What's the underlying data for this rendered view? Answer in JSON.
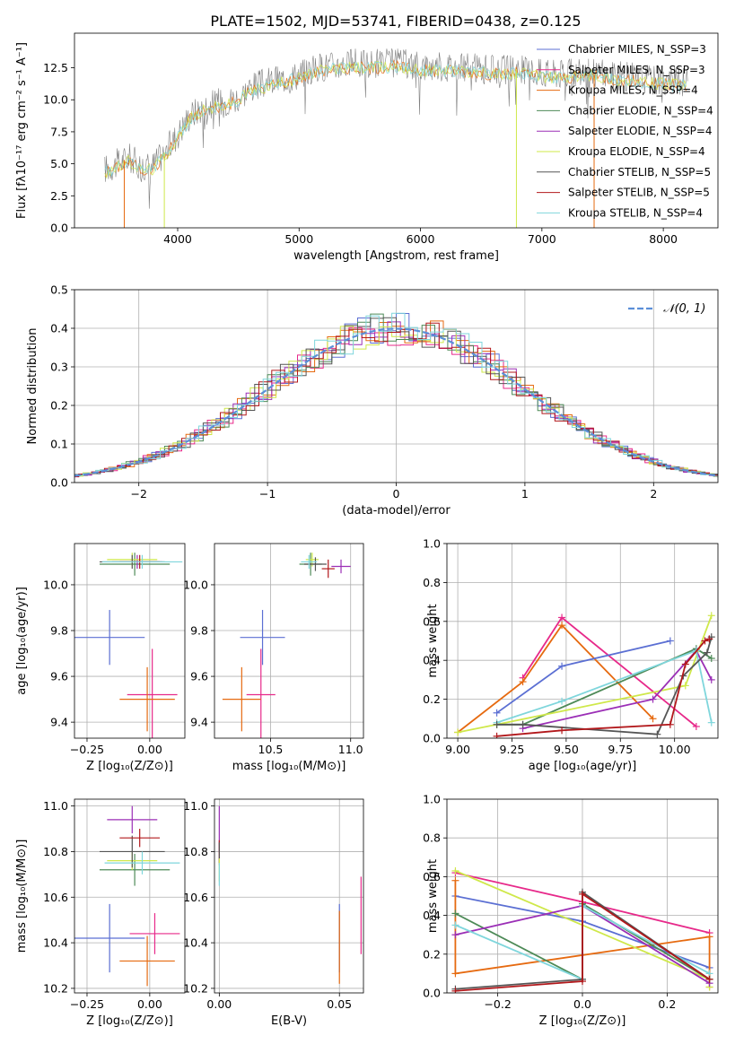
{
  "figure": {
    "title": "PLATE=1502, MJD=53741, FIBERID=0438, z=0.125"
  },
  "colors": {
    "Chabrier MILES": "#5b6fd3",
    "Salpeter MILES": "#e7298a",
    "Kroupa MILES": "#e66a10",
    "Chabrier ELODIE": "#4d8a57",
    "Salpeter ELODIE": "#9b2fb6",
    "Kroupa ELODIE": "#cfe84a",
    "Chabrier STELIB": "#555555",
    "Salpeter STELIB": "#b2181b",
    "Kroupa STELIB": "#7fd6dc",
    "gaussian": "#5b8fd8",
    "data": "#808080"
  },
  "chart_data": [
    {
      "id": "spectrum",
      "type": "line",
      "xlabel": "wavelength [Angstrom, rest frame]",
      "ylabel": "Flux [fλ10⁻¹⁷ erg cm⁻² s⁻¹ A⁻¹]",
      "xlim": [
        3150,
        8450
      ],
      "ylim": [
        0,
        15.2
      ],
      "xticks": [
        4000,
        5000,
        6000,
        7000,
        8000
      ],
      "yticks": [
        0.0,
        2.5,
        5.0,
        7.5,
        10.0,
        12.5
      ],
      "legend_position": "upper right",
      "legend": [
        {
          "label": "Chabrier MILES, N_SSP=3",
          "color_key": "Chabrier MILES"
        },
        {
          "label": "Salpeter MILES, N_SSP=3",
          "color_key": "Salpeter MILES"
        },
        {
          "label": "Kroupa MILES, N_SSP=4",
          "color_key": "Kroupa MILES"
        },
        {
          "label": "Chabrier ELODIE, N_SSP=4",
          "color_key": "Chabrier ELODIE"
        },
        {
          "label": "Salpeter ELODIE, N_SSP=4",
          "color_key": "Salpeter ELODIE"
        },
        {
          "label": "Kroupa ELODIE, N_SSP=4",
          "color_key": "Kroupa ELODIE"
        },
        {
          "label": "Chabrier STELIB, N_SSP=5",
          "color_key": "Chabrier STELIB"
        },
        {
          "label": "Salpeter STELIB, N_SSP=5",
          "color_key": "Salpeter STELIB"
        },
        {
          "label": "Kroupa STELIB, N_SSP=4",
          "color_key": "Kroupa STELIB"
        }
      ],
      "envelope": {
        "x": [
          3400,
          3500,
          3600,
          3700,
          3800,
          3900,
          4000,
          4100,
          4200,
          4300,
          4400,
          4500,
          4600,
          4800,
          5000,
          5200,
          5400,
          5600,
          5800,
          6000,
          6200,
          6400,
          6600,
          6800,
          7000,
          7200,
          7400,
          7600,
          7800,
          8000,
          8200
        ],
        "y": [
          4.6,
          5.0,
          5.5,
          4.8,
          4.9,
          6.0,
          7.3,
          8.8,
          9.4,
          9.7,
          9.9,
          10.2,
          11.0,
          11.5,
          12.0,
          12.6,
          12.8,
          12.8,
          12.9,
          12.6,
          12.6,
          12.5,
          12.3,
          12.4,
          12.1,
          12.0,
          12.2,
          11.9,
          11.7,
          11.5,
          11.4
        ]
      }
    },
    {
      "id": "residuals",
      "type": "line",
      "xlabel": "(data-model)/error",
      "ylabel": "Normed distribution",
      "xlim": [
        -2.5,
        2.5
      ],
      "ylim": [
        0.0,
        0.5
      ],
      "xticks": [
        -2,
        -1,
        0,
        1,
        2
      ],
      "yticks": [
        0.0,
        0.1,
        0.2,
        0.3,
        0.4,
        0.5
      ],
      "grid": true,
      "legend_position": "upper right",
      "legend": [
        {
          "label": "𝒩(0, 1)",
          "color_key": "gaussian"
        }
      ]
    },
    {
      "id": "age-vs-Z",
      "type": "scatter",
      "xlabel": "Z [log₁₀(Z/Z⊙)]",
      "ylabel": "age  [log₁₀(age/yr)]",
      "xlim": [
        -0.3,
        0.14
      ],
      "ylim": [
        9.33,
        10.18
      ],
      "xticks": [
        -0.25,
        0.0
      ],
      "yticks": [
        9.4,
        9.6,
        9.8,
        10.0
      ],
      "grid": true,
      "points": [
        {
          "color_key": "Chabrier MILES",
          "x": -0.16,
          "y": 9.77,
          "ex": 0.14,
          "ey": 0.12
        },
        {
          "color_key": "Salpeter MILES",
          "x": 0.01,
          "y": 9.52,
          "ex": 0.1,
          "ey": 0.2
        },
        {
          "color_key": "Kroupa MILES",
          "x": -0.01,
          "y": 9.5,
          "ex": 0.11,
          "ey": 0.14
        },
        {
          "color_key": "Chabrier ELODIE",
          "x": -0.06,
          "y": 10.09,
          "ex": 0.14,
          "ey": 0.05
        },
        {
          "color_key": "Salpeter ELODIE",
          "x": -0.05,
          "y": 10.1,
          "ex": 0.1,
          "ey": 0.03
        },
        {
          "color_key": "Kroupa ELODIE",
          "x": -0.07,
          "y": 10.11,
          "ex": 0.1,
          "ey": 0.03
        },
        {
          "color_key": "Chabrier STELIB",
          "x": -0.07,
          "y": 10.1,
          "ex": 0.13,
          "ey": 0.03
        },
        {
          "color_key": "Salpeter STELIB",
          "x": -0.04,
          "y": 10.1,
          "ex": 0.08,
          "ey": 0.03
        },
        {
          "color_key": "Kroupa STELIB",
          "x": -0.03,
          "y": 10.1,
          "ex": 0.16,
          "ey": 0.03
        }
      ]
    },
    {
      "id": "age-vs-mass",
      "type": "scatter",
      "xlabel": "mass [log₁₀(M/M⊙)]",
      "ylabel": "",
      "xlim": [
        10.15,
        11.08
      ],
      "ylim": [
        9.33,
        10.18
      ],
      "xticks": [
        10.5,
        11.0
      ],
      "yticks": [
        9.4,
        9.6,
        9.8,
        10.0
      ],
      "grid": true,
      "points": [
        {
          "color_key": "Chabrier MILES",
          "x": 10.45,
          "y": 9.77,
          "ex": 0.14,
          "ey": 0.12
        },
        {
          "color_key": "Salpeter MILES",
          "x": 10.44,
          "y": 9.52,
          "ex": 0.09,
          "ey": 0.2
        },
        {
          "color_key": "Kroupa MILES",
          "x": 10.32,
          "y": 9.5,
          "ex": 0.12,
          "ey": 0.14
        },
        {
          "color_key": "Chabrier ELODIE",
          "x": 10.75,
          "y": 10.09,
          "ex": 0.07,
          "ey": 0.05
        },
        {
          "color_key": "Salpeter ELODIE",
          "x": 10.94,
          "y": 10.08,
          "ex": 0.06,
          "ey": 0.03
        },
        {
          "color_key": "Kroupa ELODIE",
          "x": 10.76,
          "y": 10.11,
          "ex": 0.04,
          "ey": 0.03
        },
        {
          "color_key": "Chabrier STELIB",
          "x": 10.78,
          "y": 10.09,
          "ex": 0.07,
          "ey": 0.03
        },
        {
          "color_key": "Salpeter STELIB",
          "x": 10.86,
          "y": 10.07,
          "ex": 0.04,
          "ey": 0.04
        },
        {
          "color_key": "Kroupa STELIB",
          "x": 10.74,
          "y": 10.1,
          "ex": 0.05,
          "ey": 0.03
        }
      ]
    },
    {
      "id": "mass-weight-vs-age",
      "type": "line",
      "xlabel": "age  [log₁₀(age/yr)]",
      "ylabel": "mass weight",
      "xlim": [
        8.95,
        10.2
      ],
      "ylim": [
        0.0,
        1.0
      ],
      "xticks": [
        9.0,
        9.25,
        9.5,
        9.75,
        10.0
      ],
      "yticks": [
        0.0,
        0.2,
        0.4,
        0.6,
        0.8,
        1.0
      ],
      "grid": true,
      "series": [
        {
          "color_key": "Salpeter MILES",
          "x": [
            9.3,
            9.48,
            10.1
          ],
          "y": [
            0.31,
            0.62,
            0.06
          ]
        },
        {
          "color_key": "Kroupa MILES",
          "x": [
            9.0,
            9.3,
            9.48,
            9.9
          ],
          "y": [
            0.03,
            0.29,
            0.58,
            0.1
          ]
        },
        {
          "color_key": "Chabrier MILES",
          "x": [
            9.18,
            9.48,
            9.98
          ],
          "y": [
            0.13,
            0.37,
            0.5
          ]
        },
        {
          "color_key": "Chabrier ELODIE",
          "x": [
            9.18,
            9.3,
            10.1,
            10.17
          ],
          "y": [
            0.07,
            0.07,
            0.46,
            0.41
          ]
        },
        {
          "color_key": "Kroupa ELODIE",
          "x": [
            9.0,
            9.18,
            10.05,
            10.17
          ],
          "y": [
            0.03,
            0.07,
            0.27,
            0.63
          ]
        },
        {
          "color_key": "Salpeter ELODIE",
          "x": [
            9.3,
            9.9,
            10.1,
            10.17
          ],
          "y": [
            0.05,
            0.2,
            0.45,
            0.3
          ]
        },
        {
          "color_key": "Kroupa STELIB",
          "x": [
            9.18,
            9.48,
            10.1,
            10.17
          ],
          "y": [
            0.08,
            0.19,
            0.45,
            0.08
          ]
        },
        {
          "color_key": "Chabrier STELIB",
          "x": [
            9.18,
            9.3,
            9.92,
            10.04,
            10.15,
            10.17
          ],
          "y": [
            0.07,
            0.07,
            0.02,
            0.32,
            0.44,
            0.52
          ]
        },
        {
          "color_key": "Salpeter STELIB",
          "x": [
            9.18,
            9.48,
            9.98,
            10.05,
            10.14,
            10.16
          ],
          "y": [
            0.01,
            0.04,
            0.07,
            0.38,
            0.5,
            0.51
          ]
        }
      ]
    },
    {
      "id": "mass-vs-Z",
      "type": "scatter",
      "xlabel": "Z [log₁₀(Z/Z⊙)]",
      "ylabel": "mass [log₁₀(M/M⊙)]",
      "xlim": [
        -0.3,
        0.14
      ],
      "ylim": [
        10.18,
        11.03
      ],
      "xticks": [
        -0.25,
        0.0
      ],
      "yticks": [
        10.2,
        10.4,
        10.6,
        10.8,
        11.0
      ],
      "grid": true,
      "points": [
        {
          "color_key": "Chabrier MILES",
          "x": -0.16,
          "y": 10.42,
          "ex": 0.14,
          "ey": 0.15
        },
        {
          "color_key": "Salpeter MILES",
          "x": 0.02,
          "y": 10.44,
          "ex": 0.1,
          "ey": 0.09
        },
        {
          "color_key": "Kroupa MILES",
          "x": -0.01,
          "y": 10.32,
          "ex": 0.11,
          "ey": 0.11
        },
        {
          "color_key": "Chabrier ELODIE",
          "x": -0.06,
          "y": 10.72,
          "ex": 0.14,
          "ey": 0.07
        },
        {
          "color_key": "Salpeter ELODIE",
          "x": -0.07,
          "y": 10.94,
          "ex": 0.1,
          "ey": 0.06
        },
        {
          "color_key": "Kroupa ELODIE",
          "x": -0.07,
          "y": 10.76,
          "ex": 0.1,
          "ey": 0.04
        },
        {
          "color_key": "Chabrier STELIB",
          "x": -0.07,
          "y": 10.8,
          "ex": 0.13,
          "ey": 0.07
        },
        {
          "color_key": "Salpeter STELIB",
          "x": -0.04,
          "y": 10.86,
          "ex": 0.08,
          "ey": 0.04
        },
        {
          "color_key": "Kroupa STELIB",
          "x": -0.03,
          "y": 10.75,
          "ex": 0.15,
          "ey": 0.05
        }
      ]
    },
    {
      "id": "mass-vs-ebv",
      "type": "scatter",
      "xlabel": "E(B-V)",
      "ylabel": "",
      "xlim": [
        -0.002,
        0.06
      ],
      "ylim": [
        10.18,
        11.03
      ],
      "xticks": [
        0.0,
        0.05
      ],
      "yticks": [
        10.2,
        10.4,
        10.6,
        10.8,
        11.0
      ],
      "grid": true,
      "points": [
        {
          "color_key": "Chabrier MILES",
          "x": 0.05,
          "y": 10.42,
          "ex": 0.0,
          "ey": 0.15
        },
        {
          "color_key": "Salpeter MILES",
          "x": 0.059,
          "y": 10.52,
          "ex": 0.0,
          "ey": 0.17
        },
        {
          "color_key": "Kroupa MILES",
          "x": 0.05,
          "y": 10.38,
          "ex": 0.0,
          "ey": 0.16
        },
        {
          "color_key": "Salpeter ELODIE",
          "x": 0.0,
          "y": 10.9,
          "ex": 0.0,
          "ey": 0.1
        },
        {
          "color_key": "Salpeter STELIB",
          "x": 0.0,
          "y": 10.8,
          "ex": 0.0,
          "ey": 0.05
        },
        {
          "color_key": "Chabrier STELIB",
          "x": 0.0,
          "y": 10.79,
          "ex": 0.0,
          "ey": 0.05
        },
        {
          "color_key": "Kroupa ELODIE",
          "x": 0.0,
          "y": 10.72,
          "ex": 0.0,
          "ey": 0.05
        },
        {
          "color_key": "Kroupa STELIB",
          "x": 0.0,
          "y": 10.7,
          "ex": 0.0,
          "ey": 0.05
        }
      ]
    },
    {
      "id": "mass-weight-vs-Z",
      "type": "line",
      "xlabel": "Z [log₁₀(Z/Z⊙)]",
      "ylabel": "mass weight",
      "xlim": [
        -0.32,
        0.32
      ],
      "ylim": [
        0.0,
        1.0
      ],
      "xticks": [
        -0.2,
        0.0,
        0.2
      ],
      "yticks": [
        0.0,
        0.2,
        0.4,
        0.6,
        0.8,
        1.0
      ],
      "grid": true,
      "series": [
        {
          "color_key": "Salpeter MILES",
          "x": [
            -0.3,
            0.0,
            0.3
          ],
          "y": [
            0.62,
            0.47,
            0.31
          ]
        },
        {
          "color_key": "Chabrier MILES",
          "x": [
            -0.3,
            0.0,
            0.3
          ],
          "y": [
            0.5,
            0.37,
            0.13
          ]
        },
        {
          "color_key": "Kroupa MILES",
          "x": [
            -0.3,
            -0.3,
            0.3,
            0.3
          ],
          "y": [
            0.58,
            0.1,
            0.29,
            0.03
          ]
        },
        {
          "color_key": "Kroupa ELODIE",
          "x": [
            -0.3,
            0.3,
            0.3
          ],
          "y": [
            0.63,
            0.07,
            0.03
          ]
        },
        {
          "color_key": "Chabrier ELODIE",
          "x": [
            -0.3,
            0.0,
            0.0,
            0.3
          ],
          "y": [
            0.41,
            0.07,
            0.46,
            0.07
          ]
        },
        {
          "color_key": "Salpeter ELODIE",
          "x": [
            -0.3,
            0.0,
            0.3
          ],
          "y": [
            0.3,
            0.45,
            0.05
          ]
        },
        {
          "color_key": "Kroupa STELIB",
          "x": [
            -0.3,
            0.0,
            0.0,
            0.3
          ],
          "y": [
            0.35,
            0.07,
            0.45,
            0.1
          ]
        },
        {
          "color_key": "Chabrier STELIB",
          "x": [
            -0.3,
            0.0,
            0.0,
            0.3
          ],
          "y": [
            0.02,
            0.07,
            0.52,
            0.07
          ]
        },
        {
          "color_key": "Salpeter STELIB",
          "x": [
            -0.3,
            0.0,
            0.0,
            0.3
          ],
          "y": [
            0.01,
            0.06,
            0.51,
            0.07
          ]
        }
      ]
    }
  ]
}
